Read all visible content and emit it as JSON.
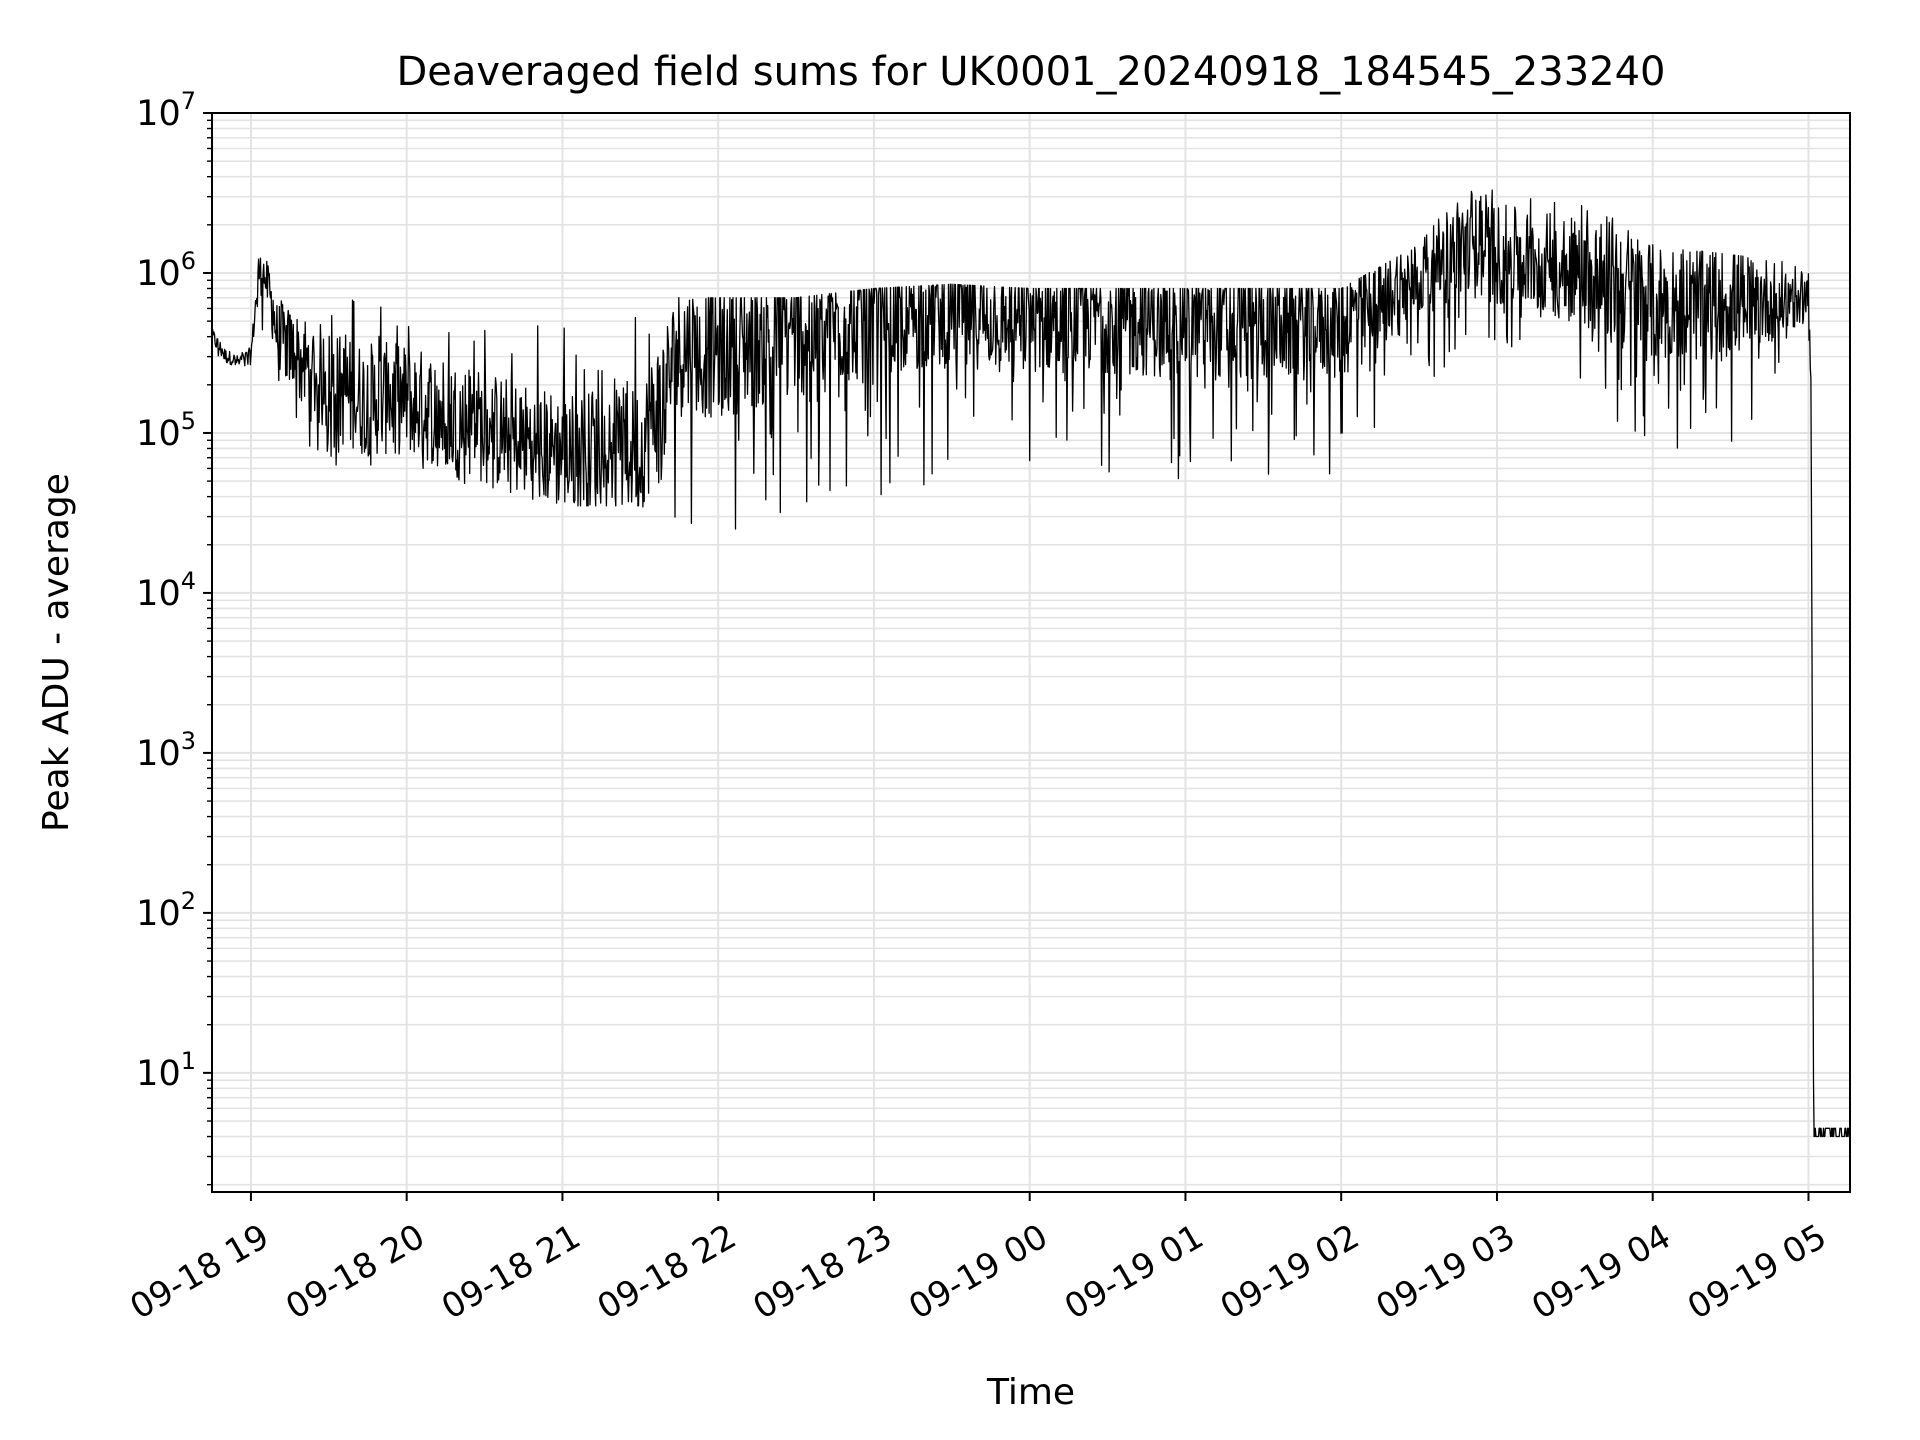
{
  "chart_data": {
    "type": "line",
    "title": "Deaveraged field sums for UK0001_20240918_184545_233240",
    "xlabel": "Time",
    "ylabel": "Peak ADU - average",
    "yscale": "log",
    "ylim": [
      1.8,
      10000000
    ],
    "xlim": [
      "09-18 18:45",
      "09-19 05:16"
    ],
    "grid": true,
    "x_ticks": [
      "09-18 19",
      "09-18 20",
      "09-18 21",
      "09-18 22",
      "09-18 23",
      "09-19 00",
      "09-19 01",
      "09-19 02",
      "09-19 03",
      "09-19 04",
      "09-19 05"
    ],
    "y_ticks": [
      {
        "base": "10",
        "exp": "1",
        "value": 10
      },
      {
        "base": "10",
        "exp": "2",
        "value": 100
      },
      {
        "base": "10",
        "exp": "3",
        "value": 1000
      },
      {
        "base": "10",
        "exp": "4",
        "value": 10000
      },
      {
        "base": "10",
        "exp": "5",
        "value": 100000
      },
      {
        "base": "10",
        "exp": "6",
        "value": 1000000
      },
      {
        "base": "10",
        "exp": "7",
        "value": 10000000
      }
    ],
    "series": [
      {
        "color": "#000000",
        "envelope_note_values": "approximate envelope (upper/typical/lower) of a dense noisy signal",
        "x": [
          "09-18 18:45",
          "09-18 18:50",
          "09-18 18:55",
          "09-18 19:00",
          "09-18 19:03",
          "09-18 19:06",
          "09-18 19:10",
          "09-18 19:20",
          "09-18 19:40",
          "09-18 20:00",
          "09-18 20:30",
          "09-18 21:00",
          "09-18 21:30",
          "09-18 21:45",
          "09-18 22:00",
          "09-18 22:30",
          "09-18 23:00",
          "09-18 23:30",
          "09-19 00:00",
          "09-19 00:30",
          "09-19 01:00",
          "09-19 01:30",
          "09-19 02:00",
          "09-19 02:30",
          "09-19 02:50",
          "09-19 03:00",
          "09-19 03:30",
          "09-19 03:45",
          "09-19 04:00",
          "09-19 04:30",
          "09-19 04:50",
          "09-19 05:00",
          "09-19 05:01",
          "09-19 05:02",
          "09-19 05:16"
        ],
        "upper": [
          450000,
          350000,
          320000,
          400000,
          1300000,
          1200000,
          700000,
          800000,
          900000,
          800000,
          700000,
          600000,
          800000,
          700000,
          700000,
          700000,
          800000,
          850000,
          800000,
          800000,
          800000,
          800000,
          800000,
          1500000,
          4000000,
          3500000,
          3000000,
          2500000,
          1500000,
          1300000,
          1200000,
          1000000,
          500000,
          4,
          4
        ],
        "values": [
          400000,
          300000,
          280000,
          300000,
          1000000,
          900000,
          400000,
          250000,
          150000,
          150000,
          100000,
          70000,
          70000,
          300000,
          300000,
          400000,
          500000,
          550000,
          500000,
          500000,
          450000,
          450000,
          450000,
          900000,
          1500000,
          1200000,
          1000000,
          800000,
          600000,
          600000,
          650000,
          700000,
          200000,
          4,
          4
        ],
        "lower": [
          300000,
          240000,
          250000,
          260000,
          500000,
          300000,
          150000,
          70000,
          55000,
          55000,
          45000,
          35000,
          35000,
          28000,
          25000,
          25000,
          40000,
          50000,
          50000,
          50000,
          50000,
          50000,
          50000,
          200000,
          300000,
          300000,
          250000,
          100000,
          80000,
          80000,
          200000,
          300000,
          100000,
          4,
          4
        ]
      }
    ]
  }
}
